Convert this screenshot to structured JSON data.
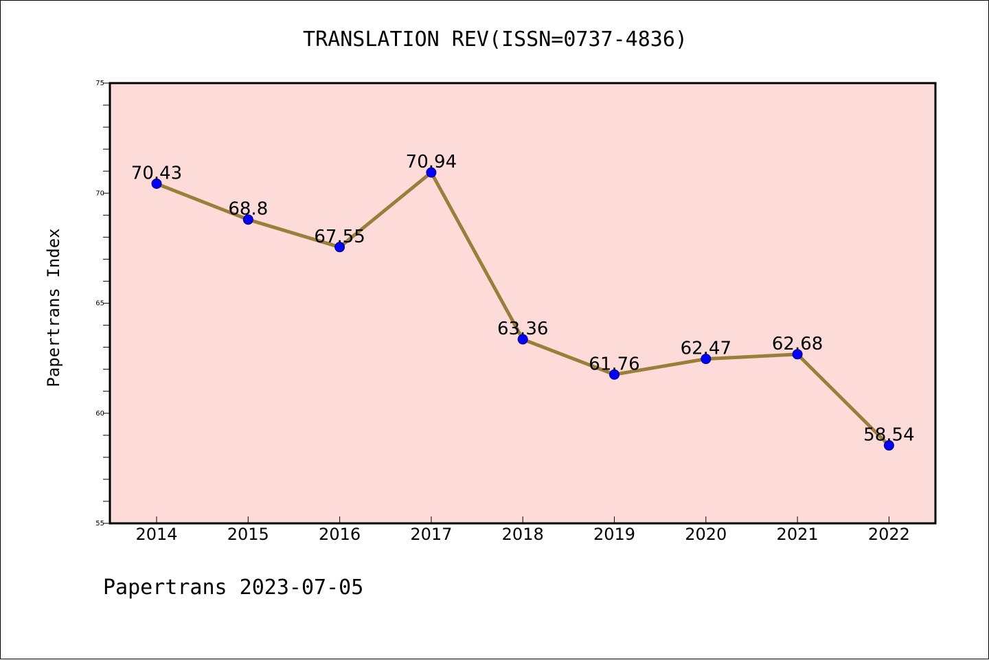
{
  "chart_data": {
    "type": "line",
    "title": "TRANSLATION REV(ISSN=0737-4836)",
    "ylabel": "Papertrans Index",
    "xlabel": "",
    "footer": "Papertrans 2023-07-05",
    "x": [
      "2014",
      "2015",
      "2016",
      "2017",
      "2018",
      "2019",
      "2020",
      "2021",
      "2022"
    ],
    "series": [
      {
        "values": [
          70.43,
          68.8,
          67.55,
          70.94,
          63.36,
          61.76,
          62.47,
          62.68,
          58.54
        ]
      }
    ],
    "data_labels": [
      "70.43",
      "68.8",
      "67.55",
      "70.94",
      "63.36",
      "61.76",
      "62.47",
      "62.68",
      "58.54"
    ],
    "ylim": [
      55,
      75
    ],
    "yticks": [
      "55",
      "60",
      "65",
      "70",
      "75"
    ],
    "y_minor_step": 1,
    "grid": false,
    "colors": {
      "plot_background": "#fddbd8",
      "line": "#9a7f3a",
      "marker": "#0000ff"
    }
  }
}
